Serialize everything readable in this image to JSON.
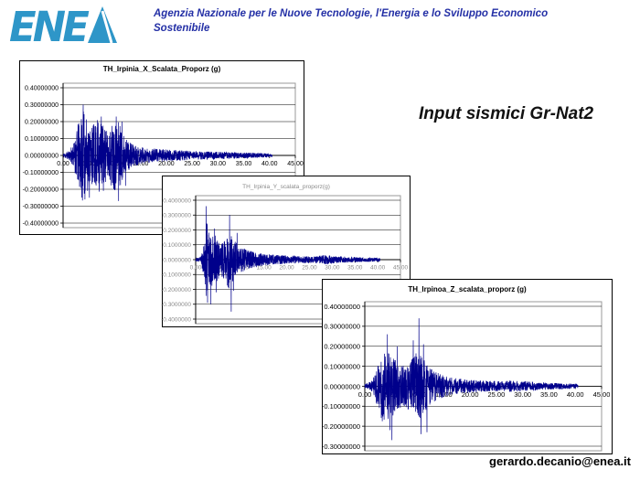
{
  "header": {
    "logo_text": "ENEA",
    "logo_color": "#2e96c8",
    "text_color": "#2430a6",
    "agency_line1": "Agenzia Nazionale per le Nuove Tecnologie, l'Energia e lo Sviluppo Economico",
    "agency_line2": "Sostenibile"
  },
  "slide": {
    "heading": "Input sismici Gr-Nat2",
    "footer_email": "gerardo.decanio@enea.it"
  },
  "chart_data": [
    {
      "type": "line",
      "title": "TH_Irpinia_X_Scalata_Proporz (g)",
      "xlabel": "",
      "ylabel": "",
      "xlim": [
        0,
        45
      ],
      "x_ticks": [
        "0.00",
        "5.00",
        "10.00",
        "15.00",
        "20.00",
        "25.00",
        "30.00",
        "35.00",
        "40.00",
        "45.00"
      ],
      "y_ticks": [
        "0.40000000",
        "0.30000000",
        "0.20000000",
        "0.10000000",
        "0.00000000",
        "-0.10000000",
        "-0.20000000",
        "-0.30000000",
        "-0.40000000"
      ],
      "grid": true,
      "legend": false,
      "line_color": "#00008b",
      "text_color": "#000000",
      "signal": {
        "units": "acceleration (g) vs time (s)",
        "duration": 40.5,
        "n": 1500,
        "seed": 11,
        "envelope": [
          [
            0,
            0.012
          ],
          [
            1.3,
            0.03
          ],
          [
            2.2,
            0.09
          ],
          [
            3,
            0.2
          ],
          [
            3.8,
            0.27
          ],
          [
            4.6,
            0.22
          ],
          [
            5.5,
            0.17
          ],
          [
            6.3,
            0.2
          ],
          [
            7.2,
            0.23
          ],
          [
            8,
            0.17
          ],
          [
            8.8,
            0.14
          ],
          [
            9.6,
            0.2
          ],
          [
            10.6,
            0.22
          ],
          [
            11.4,
            0.16
          ],
          [
            12.2,
            0.1
          ],
          [
            13,
            0.08
          ],
          [
            14.5,
            0.055
          ],
          [
            16,
            0.045
          ],
          [
            18,
            0.04
          ],
          [
            20,
            0.035
          ],
          [
            23,
            0.03
          ],
          [
            26,
            0.025
          ],
          [
            30,
            0.022
          ],
          [
            34,
            0.018
          ],
          [
            38,
            0.014
          ],
          [
            40.5,
            0.01
          ]
        ],
        "peaks": [
          [
            3.9,
            0.3
          ],
          [
            4.25,
            -0.26
          ],
          [
            5.1,
            -0.25
          ],
          [
            7.4,
            0.23
          ],
          [
            7.8,
            -0.21
          ],
          [
            10.3,
            0.23
          ],
          [
            10.75,
            -0.27
          ],
          [
            11.4,
            0.2
          ],
          [
            12.1,
            -0.18
          ]
        ]
      }
    },
    {
      "type": "line",
      "title": "TH_Irpinia_Y_scalata_proporz(g)",
      "xlabel": "",
      "ylabel": "",
      "xlim": [
        0,
        45
      ],
      "x_ticks": [
        "0.00",
        "5.00",
        "10.00",
        "15.00",
        "20.00",
        "25.00",
        "30.00",
        "35.00",
        "40.00",
        "45.00"
      ],
      "y_ticks": [
        "0.4000000",
        "0.3000000",
        "0.2000000",
        "0.1000000",
        "0.0000000",
        "-0.1000000",
        "-0.2000000",
        "-0.3000000",
        "-0.4000000"
      ],
      "grid": true,
      "legend": false,
      "line_color": "#00008b",
      "text_color": "#8a8a8a",
      "signal": {
        "units": "acceleration (g) vs time (s)",
        "duration": 40.5,
        "n": 1500,
        "seed": 23,
        "envelope": [
          [
            0,
            0.008
          ],
          [
            1.1,
            0.018
          ],
          [
            1.9,
            0.12
          ],
          [
            2.4,
            0.27
          ],
          [
            3.1,
            0.17
          ],
          [
            3.9,
            0.19
          ],
          [
            4.8,
            0.14
          ],
          [
            5.6,
            0.11
          ],
          [
            6.4,
            0.14
          ],
          [
            7.2,
            0.2
          ],
          [
            7.9,
            0.17
          ],
          [
            8.7,
            0.12
          ],
          [
            9.6,
            0.1
          ],
          [
            10.5,
            0.08
          ],
          [
            11.5,
            0.065
          ],
          [
            13,
            0.05
          ],
          [
            15,
            0.04
          ],
          [
            17.5,
            0.032
          ],
          [
            20,
            0.028
          ],
          [
            23,
            0.024
          ],
          [
            26,
            0.022
          ],
          [
            28.5,
            0.032
          ],
          [
            30,
            0.026
          ],
          [
            33,
            0.02
          ],
          [
            36,
            0.016
          ],
          [
            40.5,
            0.012
          ]
        ],
        "peaks": [
          [
            2.3,
            0.36
          ],
          [
            2.62,
            -0.29
          ],
          [
            3.35,
            -0.3
          ],
          [
            4.15,
            0.21
          ],
          [
            4.55,
            -0.22
          ],
          [
            7.45,
            0.3
          ],
          [
            7.8,
            -0.35
          ],
          [
            8.3,
            -0.21
          ],
          [
            9.1,
            0.18
          ]
        ]
      }
    },
    {
      "type": "line",
      "title": "TH_Irpinoa_Z_scalata_proporz (g)",
      "xlabel": "",
      "ylabel": "",
      "xlim": [
        0,
        45
      ],
      "x_ticks": [
        "0.00",
        "5.00",
        "10.00",
        "15.00",
        "20.00",
        "25.00",
        "30.00",
        "35.00",
        "40.00",
        "45.00"
      ],
      "y_ticks": [
        "0.40000000",
        "0.30000000",
        "0.20000000",
        "0.10000000",
        "0.00000000",
        "-0.10000000",
        "-0.20000000",
        "-0.30000000"
      ],
      "grid": true,
      "legend": false,
      "line_color": "#00008b",
      "text_color": "#000000",
      "signal": {
        "units": "acceleration (g) vs time (s)",
        "duration": 40.5,
        "n": 1500,
        "seed": 37,
        "envelope": [
          [
            0,
            0.01
          ],
          [
            1.4,
            0.028
          ],
          [
            2.4,
            0.1
          ],
          [
            3.3,
            0.18
          ],
          [
            4.2,
            0.17
          ],
          [
            5,
            0.16
          ],
          [
            5.9,
            0.13
          ],
          [
            6.8,
            0.11
          ],
          [
            7.7,
            0.1
          ],
          [
            8.6,
            0.13
          ],
          [
            9.5,
            0.17
          ],
          [
            10.4,
            0.17
          ],
          [
            11.3,
            0.13
          ],
          [
            12.2,
            0.1
          ],
          [
            13.2,
            0.08
          ],
          [
            14.5,
            0.06
          ],
          [
            16,
            0.045
          ],
          [
            18,
            0.038
          ],
          [
            20,
            0.032
          ],
          [
            22.5,
            0.028
          ],
          [
            25,
            0.025
          ],
          [
            27.5,
            0.028
          ],
          [
            30,
            0.026
          ],
          [
            32.5,
            0.022
          ],
          [
            35,
            0.018
          ],
          [
            38,
            0.015
          ],
          [
            40.5,
            0.012
          ]
        ],
        "peaks": [
          [
            4.3,
            0.26
          ],
          [
            4.75,
            -0.22
          ],
          [
            5.15,
            -0.27
          ],
          [
            6.2,
            0.2
          ],
          [
            9.2,
            0.23
          ],
          [
            10.3,
            0.34
          ],
          [
            10.7,
            -0.24
          ],
          [
            11.15,
            0.21
          ],
          [
            11.8,
            -0.23
          ]
        ]
      }
    }
  ]
}
